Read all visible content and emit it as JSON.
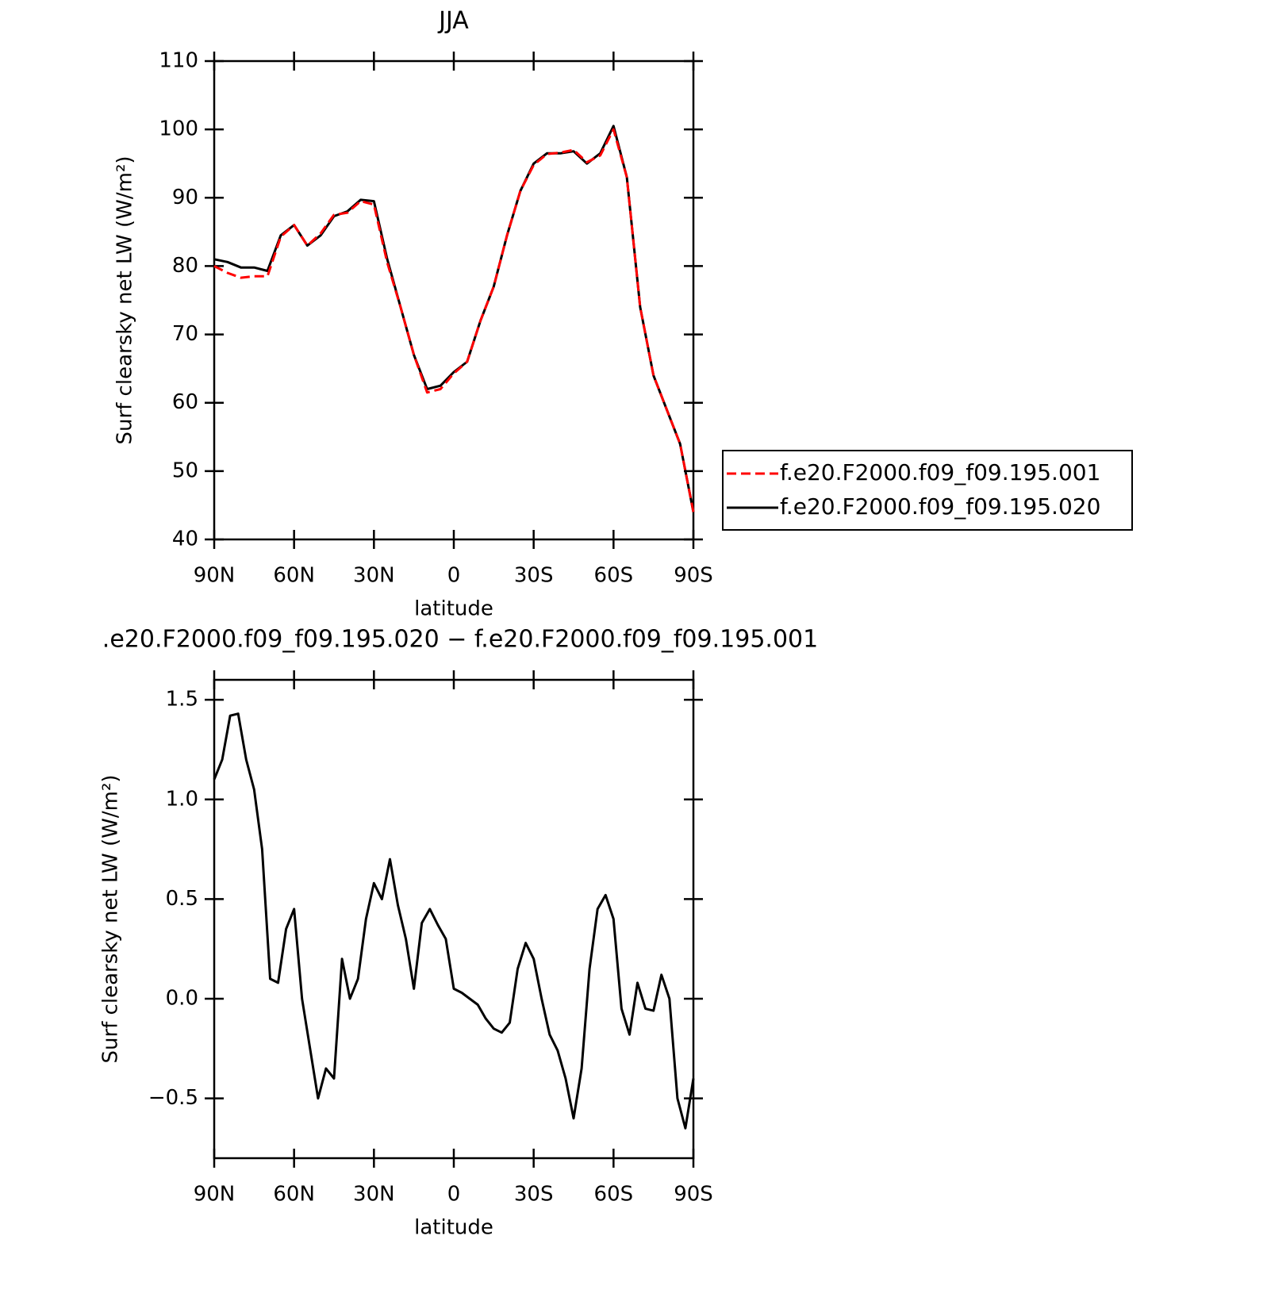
{
  "chart_data": [
    {
      "type": "line",
      "title": "JJA",
      "xlabel": "latitude",
      "ylabel": "Surf clearsky net LW (W/m²)",
      "xlim": [
        90,
        -90
      ],
      "xticks": [
        {
          "value": 90,
          "label": "90N"
        },
        {
          "value": 60,
          "label": "60N"
        },
        {
          "value": 30,
          "label": "30N"
        },
        0,
        {
          "value": -30,
          "label": "30S"
        },
        {
          "value": -60,
          "label": "60S"
        },
        {
          "value": -90,
          "label": "90S"
        }
      ],
      "ylim": [
        40,
        110
      ],
      "yticks": [
        40,
        50,
        60,
        70,
        80,
        90,
        100,
        110
      ],
      "legend": "right",
      "x": [
        90,
        85,
        80,
        75,
        70,
        65,
        60,
        55,
        50,
        45,
        40,
        35,
        30,
        25,
        20,
        15,
        10,
        5,
        0,
        -5,
        -10,
        -15,
        -20,
        -25,
        -30,
        -35,
        -40,
        -45,
        -50,
        -55,
        -60,
        -65,
        -70,
        -75,
        -80,
        -85,
        -90
      ],
      "series": [
        {
          "name": "f.e20.F2000.f09_f09.195.001",
          "color": "#ff0000",
          "linestyle": "dashed",
          "values": [
            80,
            79,
            78.3,
            78.5,
            78.5,
            84.3,
            86,
            83,
            84.8,
            87.5,
            87.8,
            89.5,
            89,
            80.5,
            74,
            67,
            61.5,
            62,
            64.3,
            66,
            72,
            77,
            84.5,
            91,
            94.8,
            96.4,
            96.6,
            97,
            95.2,
            96.2,
            100,
            93,
            74,
            64,
            59,
            54,
            44
          ]
        },
        {
          "name": "f.e20.F2000.f09_f09.195.020",
          "color": "#000000",
          "linestyle": "solid",
          "values": [
            81,
            80.6,
            79.8,
            79.8,
            79.3,
            84.5,
            86,
            83,
            84.5,
            87.3,
            88,
            89.7,
            89.5,
            81,
            74,
            67,
            62,
            62.5,
            64.5,
            66,
            72,
            77,
            84.5,
            91,
            95,
            96.5,
            96.5,
            96.8,
            95,
            96.5,
            100.5,
            93,
            74,
            64,
            59,
            54,
            44
          ]
        }
      ]
    },
    {
      "type": "line",
      "title": ".e20.F2000.f09_f09.195.020 − f.e20.F2000.f09_f09.195.001",
      "xlabel": "latitude",
      "ylabel": "Surf clearsky net LW (W/m²)",
      "xlim": [
        90,
        -90
      ],
      "xticks": [
        {
          "value": 90,
          "label": "90N"
        },
        {
          "value": 60,
          "label": "60N"
        },
        {
          "value": 30,
          "label": "30N"
        },
        0,
        {
          "value": -30,
          "label": "30S"
        },
        {
          "value": -60,
          "label": "60S"
        },
        {
          "value": -90,
          "label": "90S"
        }
      ],
      "ylim": [
        -0.8,
        1.6
      ],
      "yticks": [
        {
          "value": -0.5,
          "label": "−0.5"
        },
        {
          "value": 0,
          "label": "0.0"
        },
        {
          "value": 0.5,
          "label": "0.5"
        },
        {
          "value": 1,
          "label": "1.0"
        },
        {
          "value": 1.5,
          "label": "1.5"
        }
      ],
      "x": [
        90,
        87,
        84,
        81,
        78,
        75,
        72,
        69,
        66,
        63,
        60,
        57,
        54,
        51,
        48,
        45,
        42,
        39,
        36,
        33,
        30,
        27,
        24,
        21,
        18,
        15,
        12,
        9,
        6,
        3,
        0,
        -3,
        -6,
        -9,
        -12,
        -15,
        -18,
        -21,
        -24,
        -27,
        -30,
        -33,
        -36,
        -39,
        -42,
        -45,
        -48,
        -51,
        -54,
        -57,
        -60,
        -63,
        -66,
        -69,
        -72,
        -75,
        -78,
        -81,
        -84,
        -87,
        -90
      ],
      "series": [
        {
          "color": "#000000",
          "linestyle": "solid",
          "values": [
            1.1,
            1.2,
            1.42,
            1.43,
            1.2,
            1.05,
            0.75,
            0.1,
            0.08,
            0.35,
            0.45,
            0,
            -0.25,
            -0.5,
            -0.35,
            -0.4,
            0.2,
            0,
            0.1,
            0.4,
            0.58,
            0.5,
            0.7,
            0.47,
            0.3,
            0.05,
            0.38,
            0.45,
            0.37,
            0.3,
            0.05,
            0.03,
            0,
            -0.03,
            -0.1,
            -0.15,
            -0.17,
            -0.12,
            0.15,
            0.28,
            0.2,
            0,
            -0.18,
            -0.26,
            -0.4,
            -0.6,
            -0.35,
            0.15,
            0.45,
            0.52,
            0.4,
            -0.05,
            -0.18,
            0.08,
            -0.05,
            -0.06,
            0.12,
            0,
            -0.5,
            -0.65,
            -0.4
          ]
        }
      ]
    }
  ]
}
